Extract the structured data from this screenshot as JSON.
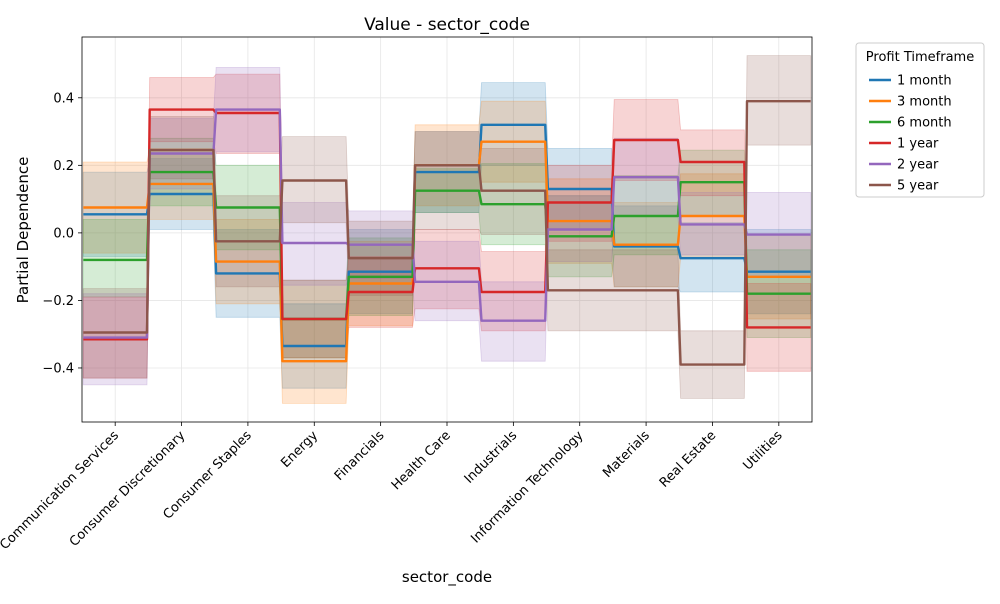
{
  "chart_data": {
    "type": "line",
    "title": "Value - sector_code",
    "xlabel": "sector_code",
    "ylabel": "Partial Dependence",
    "categories": [
      "Communication Services",
      "Consumer Discretionary",
      "Consumer Staples",
      "Energy",
      "Financials",
      "Health Care",
      "Industrials",
      "Information Technology",
      "Materials",
      "Real Estate",
      "Utilities"
    ],
    "ylim": [
      -0.56,
      0.58
    ],
    "yticks": [
      -0.4,
      -0.2,
      0.0,
      0.2,
      0.4
    ],
    "ytick_labels": [
      "−0.4",
      "−0.2",
      "0.0",
      "0.2",
      "0.4"
    ],
    "grid": true,
    "legend": {
      "title": "Profit Timeframe",
      "placement": "outside-top-right"
    },
    "band": "shaded confidence band around each series",
    "series": [
      {
        "name": "1 month",
        "color": "#1f77b4",
        "values": [
          0.055,
          0.115,
          -0.12,
          -0.335,
          -0.115,
          0.18,
          0.32,
          0.13,
          -0.04,
          -0.075,
          -0.115
        ],
        "lower": [
          -0.07,
          0.01,
          -0.25,
          -0.46,
          -0.24,
          0.06,
          0.2,
          0.01,
          -0.16,
          -0.175,
          -0.24
        ],
        "upper": [
          0.18,
          0.22,
          0.01,
          -0.21,
          0.01,
          0.3,
          0.445,
          0.25,
          0.08,
          0.03,
          0.01
        ]
      },
      {
        "name": "3 month",
        "color": "#ff7f0e",
        "values": [
          0.075,
          0.145,
          -0.085,
          -0.38,
          -0.15,
          0.2,
          0.27,
          0.035,
          -0.035,
          0.05,
          -0.13
        ],
        "lower": [
          -0.06,
          0.04,
          -0.21,
          -0.505,
          -0.275,
          0.08,
          0.15,
          -0.09,
          -0.16,
          -0.075,
          -0.255
        ],
        "upper": [
          0.21,
          0.25,
          0.04,
          -0.255,
          -0.025,
          0.32,
          0.39,
          0.16,
          0.09,
          0.175,
          -0.005
        ]
      },
      {
        "name": "6 month",
        "color": "#2ca02c",
        "values": [
          -0.08,
          0.18,
          0.075,
          -0.255,
          -0.13,
          0.125,
          0.085,
          -0.01,
          0.05,
          0.15,
          -0.18
        ],
        "lower": [
          -0.19,
          0.08,
          -0.05,
          -0.37,
          -0.245,
          0.06,
          -0.035,
          -0.13,
          -0.065,
          0.05,
          -0.31
        ],
        "upper": [
          0.04,
          0.28,
          0.2,
          -0.14,
          -0.015,
          0.19,
          0.205,
          0.11,
          0.17,
          0.245,
          -0.05
        ]
      },
      {
        "name": "1 year",
        "color": "#d62728",
        "values": [
          -0.315,
          0.365,
          0.355,
          -0.255,
          -0.175,
          -0.105,
          -0.175,
          0.09,
          0.275,
          0.21,
          -0.28
        ],
        "lower": [
          -0.43,
          0.27,
          0.235,
          -0.37,
          -0.28,
          -0.225,
          -0.29,
          -0.025,
          0.155,
          0.11,
          -0.41
        ],
        "upper": [
          -0.19,
          0.46,
          0.47,
          -0.14,
          -0.07,
          0.01,
          -0.055,
          0.2,
          0.395,
          0.305,
          -0.15
        ]
      },
      {
        "name": "2 year",
        "color": "#9467bd",
        "values": [
          -0.31,
          0.235,
          0.365,
          -0.03,
          -0.035,
          -0.145,
          -0.26,
          0.01,
          0.165,
          0.025,
          -0.005
        ],
        "lower": [
          -0.45,
          0.13,
          0.24,
          -0.155,
          -0.135,
          -0.26,
          -0.38,
          -0.085,
          0.05,
          -0.065,
          -0.13
        ],
        "upper": [
          -0.18,
          0.34,
          0.49,
          0.09,
          0.065,
          -0.025,
          -0.145,
          0.11,
          0.28,
          0.12,
          0.12
        ]
      },
      {
        "name": "5 year",
        "color": "#8c564b",
        "values": [
          -0.295,
          0.245,
          -0.025,
          0.155,
          -0.075,
          0.2,
          0.125,
          -0.17,
          -0.17,
          -0.39,
          0.39
        ],
        "lower": [
          -0.43,
          0.16,
          -0.16,
          0.03,
          -0.185,
          0.01,
          -0.005,
          -0.29,
          -0.29,
          -0.49,
          0.26
        ],
        "upper": [
          -0.165,
          0.345,
          0.11,
          0.285,
          0.035,
          0.3,
          0.25,
          -0.05,
          -0.05,
          -0.29,
          0.525
        ]
      }
    ]
  }
}
